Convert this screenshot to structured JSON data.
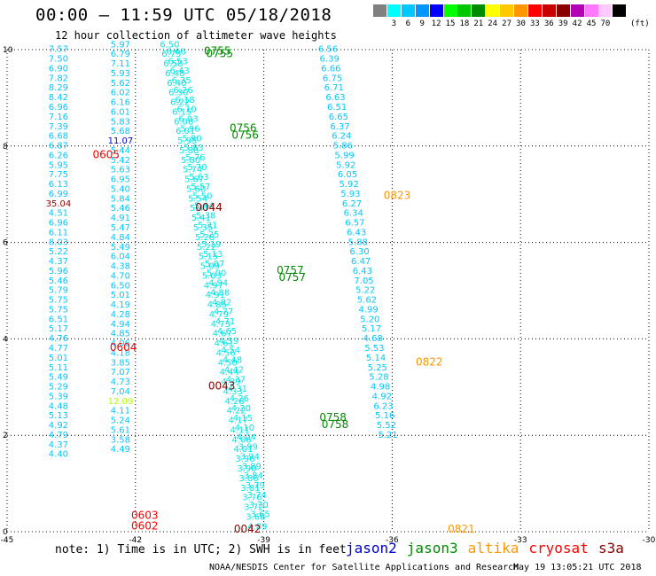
{
  "header": {
    "title": "00:00 — 11:59 UTC 05/18/2018",
    "subtitle": "12 hour collection of altimeter wave heights"
  },
  "legend": {
    "unit": "(ft)",
    "items": [
      {
        "color": "#808080",
        "label": ""
      },
      {
        "color": "#00ffff",
        "label": "3"
      },
      {
        "color": "#00c8ff",
        "label": "6"
      },
      {
        "color": "#0096ff",
        "label": "9"
      },
      {
        "color": "#0000ff",
        "label": "12"
      },
      {
        "color": "#00ff00",
        "label": "15"
      },
      {
        "color": "#00c800",
        "label": "18"
      },
      {
        "color": "#008c00",
        "label": "21"
      },
      {
        "color": "#ffff00",
        "label": "24"
      },
      {
        "color": "#ffc800",
        "label": "27"
      },
      {
        "color": "#ff9600",
        "label": "30"
      },
      {
        "color": "#ff0000",
        "label": "33"
      },
      {
        "color": "#c80000",
        "label": "36"
      },
      {
        "color": "#8c0000",
        "label": "39"
      },
      {
        "color": "#b400b4",
        "label": "42"
      },
      {
        "color": "#ff78ff",
        "label": "45"
      },
      {
        "color": "#ffc8ff",
        "label": "70"
      },
      {
        "color": "#000000",
        "label": ""
      }
    ]
  },
  "chart_data": {
    "type": "scatter",
    "xlim": [
      -45,
      -30
    ],
    "ylim": [
      0,
      10
    ],
    "xticks": [
      "-45",
      "-42",
      "-39",
      "-36",
      "-33",
      "-30"
    ],
    "yticks": [
      "0",
      "2",
      "4",
      "6",
      "8",
      "10"
    ],
    "grid": true,
    "colors": {
      "c1": "#00c8ff",
      "c2": "#00e6e6",
      "dark": "#0000c8",
      "green": "#008c00",
      "red": "#ff0000",
      "maroon": "#8c0000",
      "orange": "#ff9600",
      "yellow": "#aaff00"
    },
    "tracks": [
      {
        "name": "A",
        "color": "c1",
        "x0": -43.8,
        "dx": 0,
        "y0": 9.95,
        "dy": -0.2,
        "values": [
          "7.57",
          "7.50",
          "6.90",
          "7.82",
          "8.29",
          "8.42",
          "6.96",
          "7.16",
          "7.39",
          "6.68",
          "6.87",
          "6.26",
          "5.95",
          "7.75",
          "6.13",
          "6.99",
          "35.04",
          "4.51",
          "6.96",
          "6.11",
          "8.03",
          "5.22",
          "4.37",
          "5.96",
          "5.46",
          "5.79",
          "5.75",
          "5.75",
          "6.51",
          "5.17",
          "4.76",
          "4.77",
          "5.01",
          "5.11",
          "5.49",
          "5.29",
          "5.39",
          "4.48",
          "5.13",
          "4.92",
          "4.79",
          "4.37",
          "4.40"
        ]
      },
      {
        "name": "B",
        "color": "c1",
        "x0": -42.35,
        "dx": 0,
        "y0": 10.05,
        "dy": -0.2,
        "values": [
          "5.97",
          "6.79",
          "7.11",
          "5.93",
          "5.62",
          "6.02",
          "6.16",
          "6.01",
          "5.83",
          "5.68",
          "11.07",
          "5.44",
          "5.42",
          "5.63",
          "6.95",
          "5.40",
          "5.84",
          "5.46",
          "4.91",
          "5.47",
          "4.84",
          "5.49",
          "6.04",
          "4.38",
          "4.70",
          "6.50",
          "5.01",
          "4.19",
          "4.28",
          "4.94",
          "4.85",
          "4.06",
          "4.18",
          "3.85",
          "7.07",
          "4.73",
          "7.04",
          "12.09",
          "4.11",
          "5.24",
          "5.61",
          "3.58",
          "4.49"
        ]
      },
      {
        "name": "C",
        "color": "c2",
        "x0": -41.2,
        "dx": 0.041,
        "y0": 10.05,
        "dy": -0.2,
        "values": [
          "6.50",
          "6.75",
          "6.58",
          "6.48",
          "6.40",
          "6.30",
          "6.22",
          "6.15",
          "6.08",
          "6.01",
          "5.95",
          "5.88",
          "5.80",
          "5.74",
          "5.67",
          "5.60",
          "5.54",
          "5.47",
          "5.41",
          "5.35",
          "5.28",
          "5.22",
          "5.15",
          "5.09",
          "5.03",
          "4.97",
          "4.91",
          "4.85",
          "4.79",
          "4.73",
          "4.67",
          "4.61",
          "4.56",
          "4.50",
          "4.44",
          "4.39",
          "4.33",
          "4.28",
          "4.22",
          "4.17",
          "4.11",
          "4.06",
          "4.01",
          "3.96",
          "3.90",
          "3.86",
          "3.81",
          "3.76",
          "3.72",
          "3.68",
          "4.89"
        ]
      },
      {
        "name": "D",
        "color": "c2",
        "x0": -41.05,
        "dx": 0.041,
        "y0": 9.9,
        "dy": -0.2,
        "values": [
          "6.66",
          "6.53",
          "6.43",
          "6.35",
          "6.26",
          "6.18",
          "6.10",
          "6.03",
          "5.96",
          "5.90",
          "5.83",
          "5.76",
          "5.70",
          "5.63",
          "5.57",
          "5.50",
          "5.44",
          "5.38",
          "5.31",
          "5.25",
          "5.19",
          "5.13",
          "5.07",
          "5.00",
          "4.94",
          "4.88",
          "4.82",
          "4.77",
          "4.71",
          "4.65",
          "4.59",
          "4.54",
          "4.48",
          "4.42",
          "4.37",
          "4.31",
          "4.26",
          "4.20",
          "4.15",
          "4.10",
          "4.04",
          "3.99",
          "3.94",
          "3.89",
          "3.84",
          "3.79",
          "3.74",
          "3.70",
          "3.65"
        ]
      },
      {
        "name": "E",
        "color": "c1",
        "x0": -37.5,
        "dx": 0.035,
        "y0": 9.95,
        "dy": -0.2,
        "values": [
          "6.56",
          "6.39",
          "6.66",
          "6.75",
          "6.71",
          "6.63",
          "6.51",
          "6.65",
          "6.37",
          "6.24",
          "5.86",
          "5.99",
          "5.92",
          "6.05",
          "5.92",
          "5.93",
          "6.27",
          "6.34",
          "6.57",
          "6.43",
          "5.88",
          "6.30",
          "6.47",
          "6.43",
          "7.05",
          "5.22",
          "5.62",
          "4.99",
          "5.20",
          "5.17",
          "4.68",
          "5.53",
          "5.14",
          "5.25",
          "5.28",
          "4.98",
          "4.92",
          "6.23",
          "5.16",
          "5.52",
          "5.21"
        ]
      }
    ],
    "annotations": [
      {
        "text": "0755",
        "x": -40.4,
        "y": 9.9,
        "color": "green"
      },
      {
        "text": "0755",
        "x": -40.35,
        "y": 9.84,
        "color": "green"
      },
      {
        "text": "0756",
        "x": -39.8,
        "y": 8.3,
        "color": "green"
      },
      {
        "text": "0756",
        "x": -39.75,
        "y": 8.15,
        "color": "green"
      },
      {
        "text": "0757",
        "x": -38.7,
        "y": 5.35,
        "color": "green"
      },
      {
        "text": "0757",
        "x": -38.65,
        "y": 5.2,
        "color": "green"
      },
      {
        "text": "0758",
        "x": -37.7,
        "y": 2.3,
        "color": "green"
      },
      {
        "text": "0758",
        "x": -37.65,
        "y": 2.15,
        "color": "green"
      },
      {
        "text": "0605",
        "x": -43.0,
        "y": 7.75,
        "color": "red"
      },
      {
        "text": "0604",
        "x": -42.6,
        "y": 3.75,
        "color": "red"
      },
      {
        "text": "0603",
        "x": -42.1,
        "y": 0.27,
        "color": "red"
      },
      {
        "text": "0602",
        "x": -42.1,
        "y": 0.05,
        "color": "red"
      },
      {
        "text": "0044",
        "x": -40.6,
        "y": 6.65,
        "color": "maroon"
      },
      {
        "text": "0043",
        "x": -40.3,
        "y": 2.95,
        "color": "maroon"
      },
      {
        "text": "0042",
        "x": -39.7,
        "y": -0.02,
        "color": "maroon"
      },
      {
        "text": "0823",
        "x": -36.2,
        "y": 6.9,
        "color": "orange"
      },
      {
        "text": "0822",
        "x": -35.45,
        "y": 3.45,
        "color": "orange"
      },
      {
        "text": "0821",
        "x": -34.7,
        "y": -0.02,
        "color": "orange"
      }
    ]
  },
  "notes": {
    "note": "note: 1) Time is in UTC; 2) SWH is in feet",
    "satellites": [
      {
        "name": "jason2",
        "color": "#0000c8"
      },
      {
        "name": "jason3",
        "color": "#008c00"
      },
      {
        "name": "altika",
        "color": "#ff9600"
      },
      {
        "name": "cryosat",
        "color": "#ff0000"
      },
      {
        "name": "s3a",
        "color": "#8c0000"
      }
    ],
    "footer_left": "NOAA/NESDIS Center for Satellite Applications and Research",
    "footer_right": "May 19 13:05:21 UTC 2018"
  }
}
